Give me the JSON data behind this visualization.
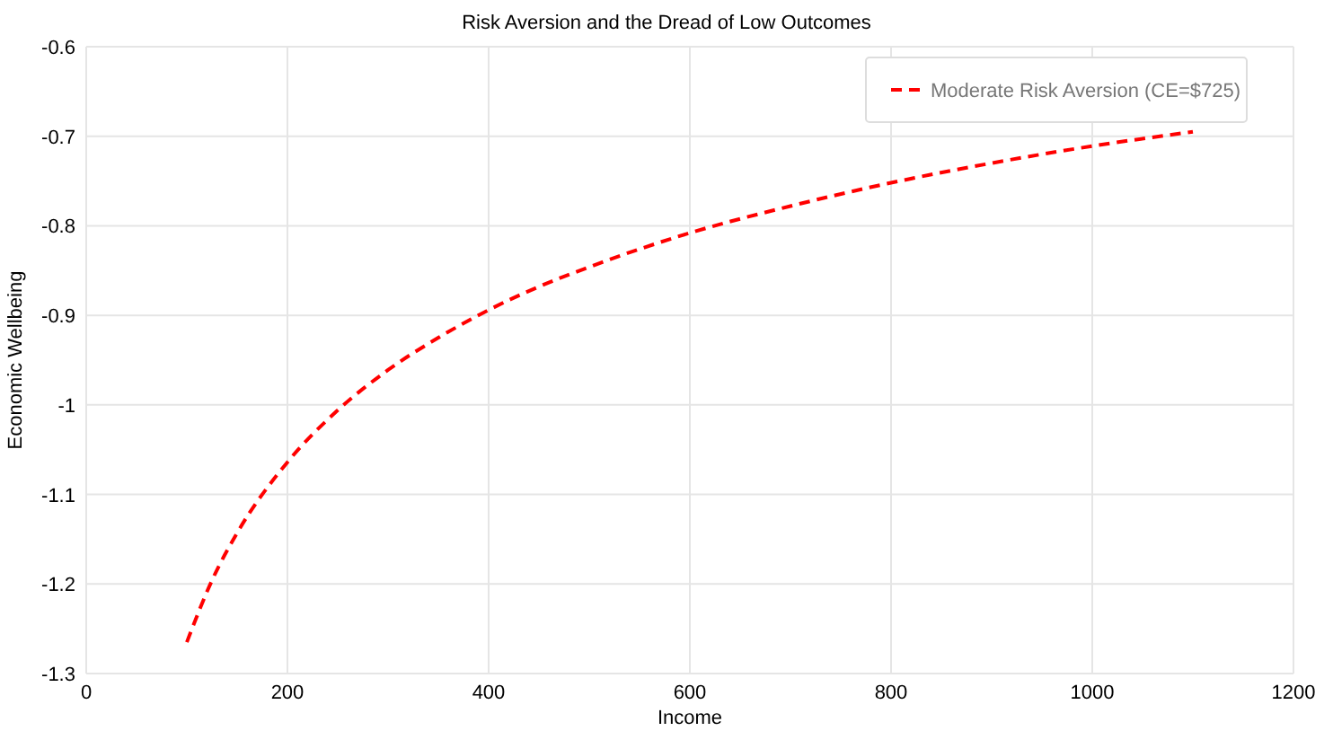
{
  "chart_data": {
    "type": "line",
    "title": "Risk Aversion and the Dread of Low Outcomes",
    "xlabel": "Income",
    "ylabel": "Economic Wellbeing",
    "x": [
      100,
      125,
      150,
      200,
      250,
      300,
      350,
      400,
      450,
      500,
      600,
      700,
      800,
      900,
      1000,
      1100
    ],
    "series": [
      {
        "name": "Moderate Risk Aversion (CE=$725)",
        "color": "#ff0000",
        "values": [
          -1.265,
          -1.196,
          -1.143,
          -1.064,
          -1.006,
          -0.961,
          -0.925,
          -0.894,
          -0.868,
          -0.846,
          -0.808,
          -0.778,
          -0.752,
          -0.73,
          -0.711,
          -0.695
        ]
      }
    ],
    "xlim": [
      0,
      1200
    ],
    "xticks": [
      0,
      200,
      400,
      600,
      800,
      1000,
      1200
    ],
    "ylim": [
      -1.3,
      -0.6
    ],
    "yticks": [
      -1.3,
      -1.2,
      -1.1,
      -1,
      -0.9,
      -0.8,
      -0.7,
      -0.6
    ],
    "grid": true,
    "legend": "top right",
    "line_style": "dashed",
    "marker": "none"
  }
}
